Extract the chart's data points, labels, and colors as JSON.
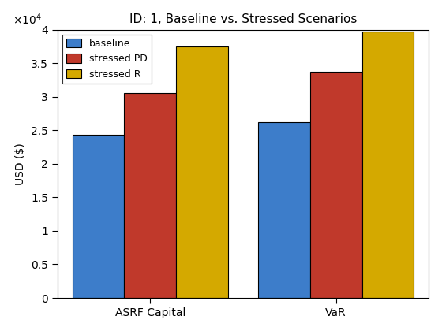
{
  "title": "ID: 1, Baseline vs. Stressed Scenarios",
  "ylabel": "USD ($)",
  "categories": [
    "ASRF Capital",
    "VaR"
  ],
  "series": {
    "baseline": [
      24300,
      26200
    ],
    "stressed PD": [
      30600,
      33700
    ],
    "stressed R": [
      37500,
      39700
    ]
  },
  "colors": {
    "baseline": "#3d7dca",
    "stressed PD": "#c0392b",
    "stressed R": "#d4a900"
  },
  "ylim": [
    0,
    40000
  ],
  "yticks": [
    0,
    5000,
    10000,
    15000,
    20000,
    25000,
    30000,
    35000,
    40000
  ],
  "ytick_labels": [
    "0",
    "0.5",
    "1",
    "1.5",
    "2",
    "2.5",
    "3",
    "3.5",
    "4"
  ],
  "bar_width": 0.28,
  "edge_color": "#000000",
  "background_color": "#ffffff",
  "title_fontsize": 11,
  "label_fontsize": 10,
  "tick_fontsize": 10,
  "legend_fontsize": 9,
  "xlim": [
    -0.5,
    1.5
  ]
}
